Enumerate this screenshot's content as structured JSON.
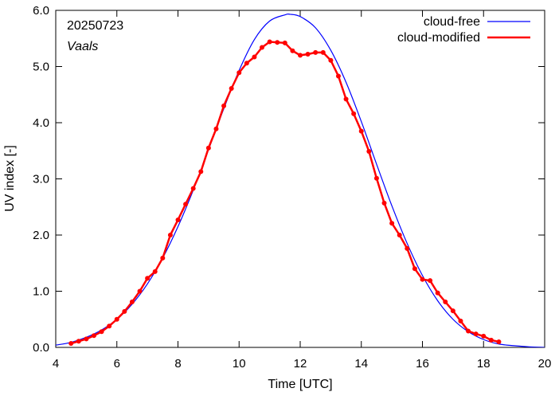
{
  "chart_data": {
    "type": "line",
    "date_label": "20250723",
    "location_label": "Vaals",
    "xlabel": "Time  [UTC]",
    "ylabel": "UV index  [-]",
    "xlim": [
      4,
      20
    ],
    "ylim": [
      0,
      6
    ],
    "x_ticks": [
      "4",
      "6",
      "8",
      "10",
      "12",
      "14",
      "16",
      "18",
      "20"
    ],
    "y_ticks": [
      "0.0",
      "1.0",
      "2.0",
      "3.0",
      "4.0",
      "5.0",
      "6.0"
    ],
    "grid": false,
    "legend_position": "top-right",
    "series": [
      {
        "name": "cloud-free",
        "color": "#0000ff",
        "marker": "none",
        "x": [
          4.0,
          4.5,
          5.0,
          5.5,
          6.0,
          6.5,
          7.0,
          7.5,
          8.0,
          8.5,
          9.0,
          9.5,
          10.0,
          10.5,
          11.0,
          11.5,
          11.67,
          12.0,
          12.5,
          13.0,
          13.5,
          14.0,
          14.5,
          15.0,
          15.5,
          16.0,
          16.5,
          17.0,
          17.5,
          18.0,
          18.5,
          19.0,
          19.5,
          20.0
        ],
        "y": [
          0.04,
          0.09,
          0.18,
          0.31,
          0.5,
          0.77,
          1.13,
          1.59,
          2.15,
          2.8,
          3.52,
          4.25,
          4.93,
          5.48,
          5.81,
          5.92,
          5.93,
          5.89,
          5.69,
          5.29,
          4.72,
          4.02,
          3.26,
          2.52,
          1.85,
          1.28,
          0.83,
          0.5,
          0.28,
          0.14,
          0.06,
          0.03,
          0.01,
          0.0
        ]
      },
      {
        "name": "cloud-modified",
        "color": "#ff0000",
        "marker": "circle",
        "x": [
          4.5,
          4.75,
          5.0,
          5.25,
          5.5,
          5.75,
          6.0,
          6.25,
          6.5,
          6.75,
          7.0,
          7.25,
          7.5,
          7.75,
          8.0,
          8.25,
          8.5,
          8.75,
          9.0,
          9.25,
          9.5,
          9.75,
          10.0,
          10.25,
          10.5,
          10.75,
          11.0,
          11.25,
          11.5,
          11.75,
          12.0,
          12.25,
          12.5,
          12.75,
          13.0,
          13.25,
          13.5,
          13.75,
          14.0,
          14.25,
          14.5,
          14.75,
          15.0,
          15.25,
          15.5,
          15.75,
          16.0,
          16.25,
          16.5,
          16.75,
          17.0,
          17.25,
          17.5,
          17.75,
          18.0,
          18.25,
          18.5
        ],
        "y": [
          0.07,
          0.11,
          0.15,
          0.21,
          0.28,
          0.38,
          0.5,
          0.64,
          0.81,
          1.0,
          1.23,
          1.35,
          1.59,
          2.0,
          2.27,
          2.55,
          2.83,
          3.13,
          3.55,
          3.89,
          4.3,
          4.61,
          4.89,
          5.06,
          5.17,
          5.34,
          5.44,
          5.43,
          5.42,
          5.28,
          5.2,
          5.22,
          5.25,
          5.25,
          5.11,
          4.83,
          4.42,
          4.16,
          3.85,
          3.49,
          3.01,
          2.57,
          2.21,
          2.0,
          1.76,
          1.4,
          1.21,
          1.19,
          0.97,
          0.81,
          0.65,
          0.47,
          0.29,
          0.24,
          0.2,
          0.13,
          0.1
        ]
      }
    ]
  }
}
